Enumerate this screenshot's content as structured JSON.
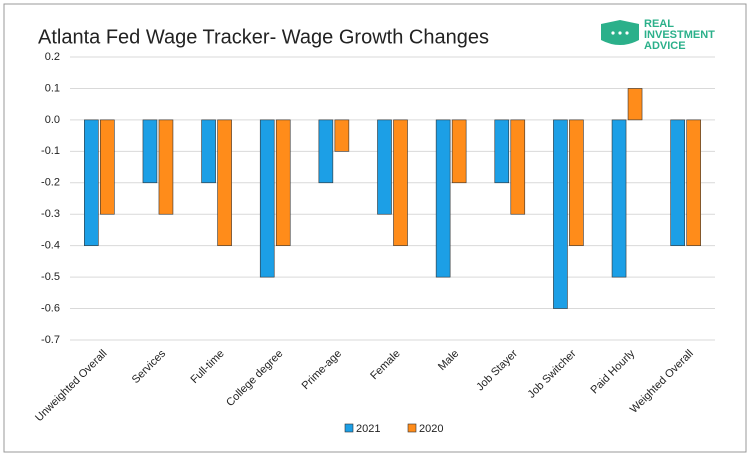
{
  "chart_data": {
    "type": "bar",
    "title": "Atlanta Fed Wage Tracker- Wage Growth Changes",
    "logo": [
      "REAL",
      "INVESTMENT",
      "ADVICE"
    ],
    "categories": [
      "Unweighted Overall",
      "Services",
      "Full-time",
      "College degree",
      "Prime-age",
      "Female",
      "Male",
      "Job Stayer",
      "Job Switcher",
      "Paid Hourly",
      "Weighted Overall"
    ],
    "series": [
      {
        "name": "2021",
        "color": "#1c9fe6",
        "values": [
          -0.4,
          -0.2,
          -0.2,
          -0.5,
          -0.2,
          -0.3,
          -0.5,
          -0.2,
          -0.6,
          -0.5,
          -0.4
        ]
      },
      {
        "name": "2020",
        "color": "#ff8c1a",
        "values": [
          -0.3,
          -0.3,
          -0.4,
          -0.4,
          -0.1,
          -0.4,
          -0.2,
          -0.3,
          -0.4,
          0.1,
          -0.4
        ]
      }
    ],
    "ylim": [
      -0.7,
      0.2
    ],
    "yticks": [
      0.2,
      0.1,
      {
        "value": 0,
        "label": "0.0"
      },
      -0.1,
      -0.2,
      -0.3,
      -0.4,
      -0.5,
      -0.6,
      -0.7
    ],
    "grid": true,
    "legend": "bottom"
  }
}
